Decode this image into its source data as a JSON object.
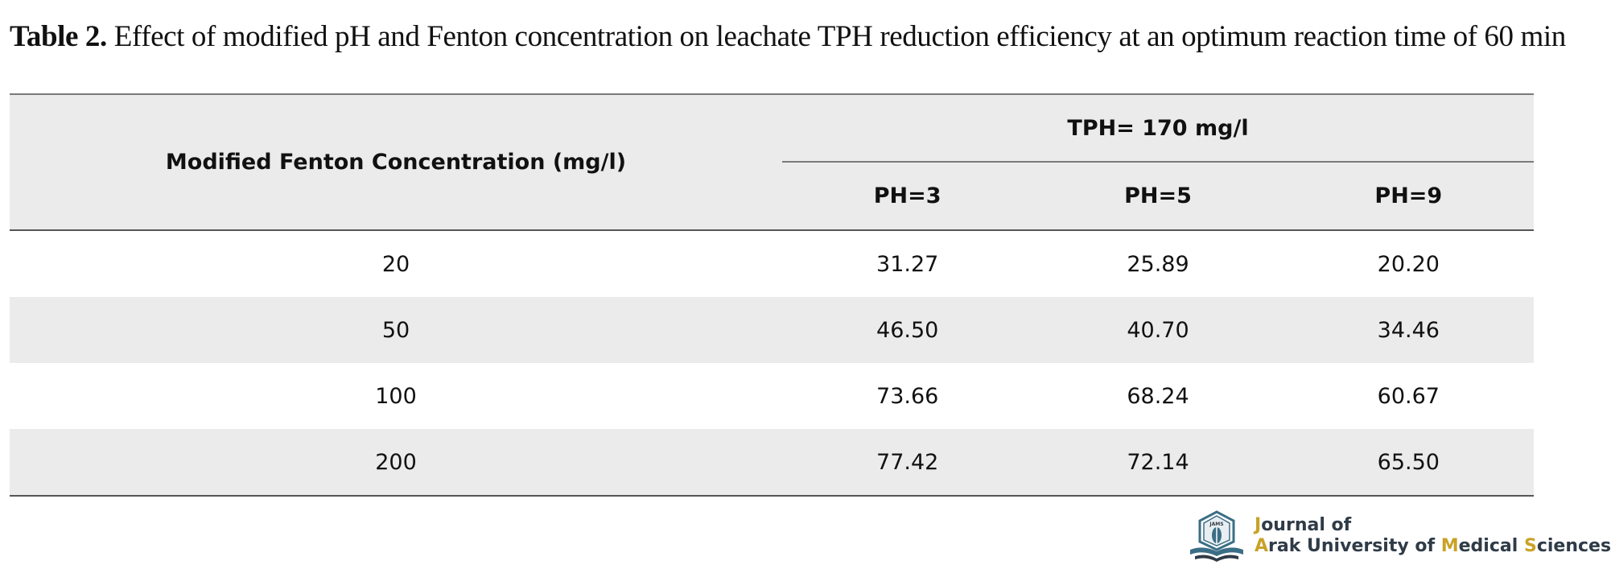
{
  "caption": {
    "label": "Table 2.",
    "text": "Effect of modified pH and Fenton concentration on leachate TPH reduction efficiency at an optimum reaction time of 60 min"
  },
  "table": {
    "row_header": "Modified Fenton Concentration (mg/l)",
    "group_header": "TPH= 170 mg/l",
    "columns": [
      "PH=3",
      "PH=5",
      "PH=9"
    ],
    "rows": [
      {
        "concentration": "20",
        "values": [
          "31.27",
          "25.89",
          "20.20"
        ]
      },
      {
        "concentration": "50",
        "values": [
          "46.50",
          "40.70",
          "34.46"
        ]
      },
      {
        "concentration": "100",
        "values": [
          "73.66",
          "68.24",
          "60.67"
        ]
      },
      {
        "concentration": "200",
        "values": [
          "77.42",
          "72.14",
          "65.50"
        ]
      }
    ]
  },
  "logo": {
    "line1": "Journal of",
    "line2": "Arak University of Medical Sciences",
    "emblem_text": "JAMS",
    "accent_color": "#c9a227",
    "text_color": "#2f3b47",
    "emblem_color": "#3b6e86"
  }
}
